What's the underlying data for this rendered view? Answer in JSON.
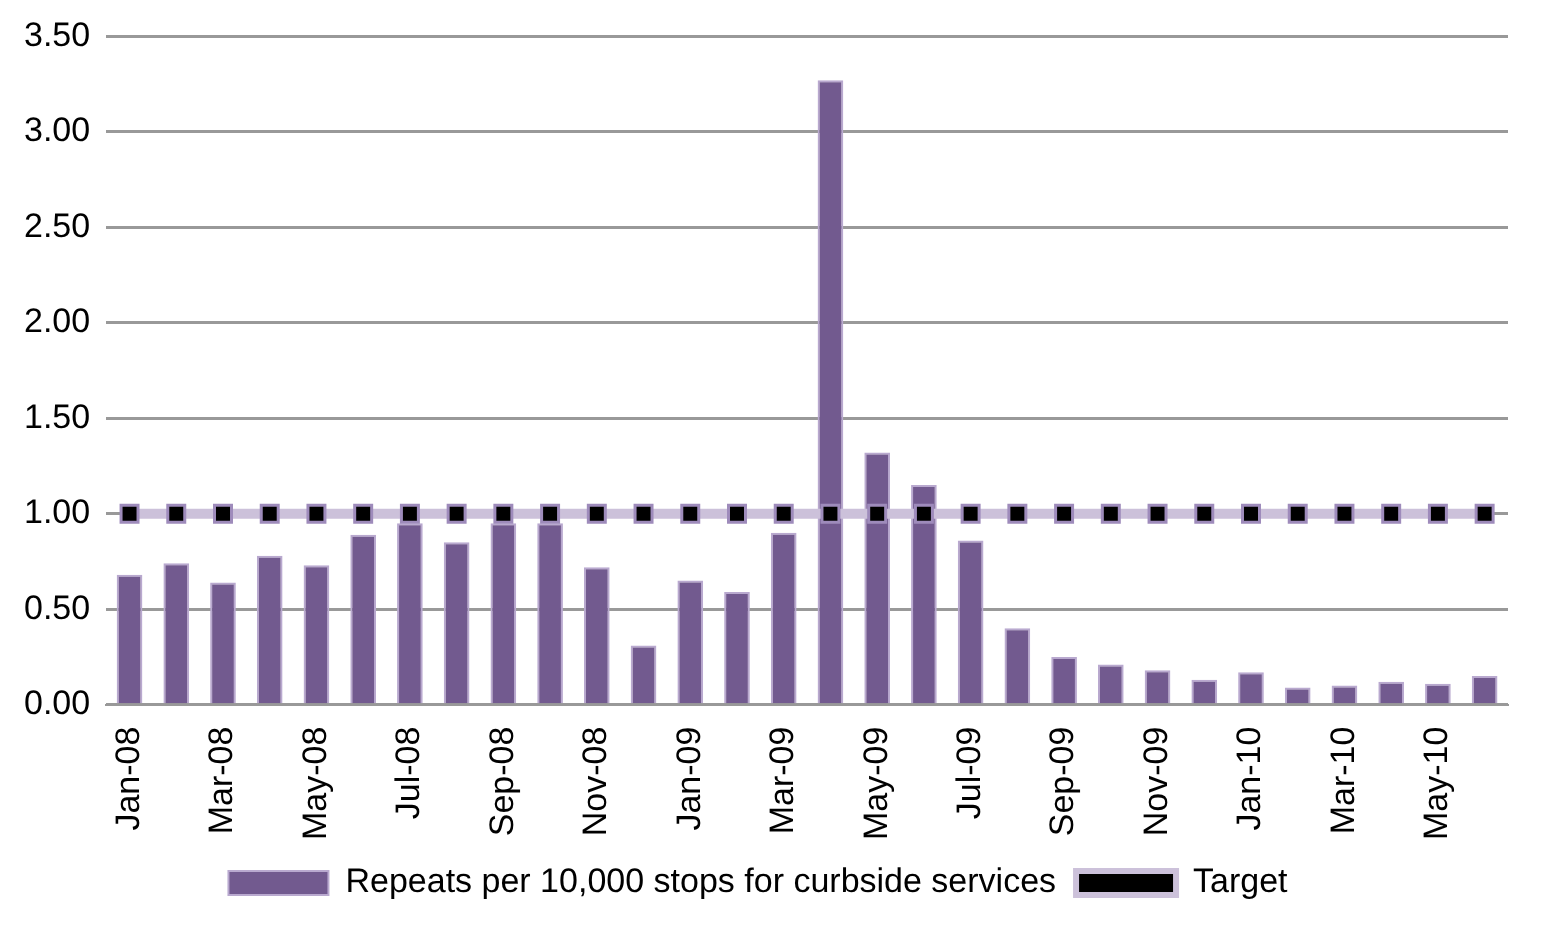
{
  "chart_data": {
    "type": "bar",
    "categories": [
      "Jan-08",
      null,
      "Mar-08",
      null,
      "May-08",
      null,
      "Jul-08",
      null,
      "Sep-08",
      null,
      "Nov-08",
      null,
      "Jan-09",
      null,
      "Mar-09",
      null,
      "May-09",
      null,
      "Jul-09",
      null,
      "Sep-09",
      null,
      "Nov-09",
      null,
      "Jan-10",
      null,
      "Mar-10",
      null,
      "May-10",
      null
    ],
    "series": [
      {
        "name": "Repeats per 10,000 stops for curbside services",
        "color": "#725a8f",
        "values": [
          0.68,
          0.74,
          0.64,
          0.78,
          0.73,
          0.89,
          0.95,
          0.85,
          0.95,
          0.95,
          0.72,
          0.31,
          0.65,
          0.59,
          0.9,
          3.27,
          1.32,
          1.15,
          0.86,
          0.4,
          0.25,
          0.21,
          0.18,
          0.13,
          0.17,
          0.09,
          0.1,
          0.12,
          0.11,
          0.15
        ]
      },
      {
        "name": "Target",
        "type": "line",
        "color": "#ccc1da",
        "marker": "square",
        "values": [
          1,
          1,
          1,
          1,
          1,
          1,
          1,
          1,
          1,
          1,
          1,
          1,
          1,
          1,
          1,
          1,
          1,
          1,
          1,
          1,
          1,
          1,
          1,
          1,
          1,
          1,
          1,
          1,
          1,
          1
        ]
      }
    ],
    "ylim": [
      0,
      3.5
    ],
    "yticks": [
      {
        "value": 0,
        "label": "0.00"
      },
      {
        "value": 0.5,
        "label": "0.50"
      },
      {
        "value": 1,
        "label": "1.00"
      },
      {
        "value": 1.5,
        "label": "1.50"
      },
      {
        "value": 2,
        "label": "2.00"
      },
      {
        "value": 2.5,
        "label": "2.50"
      },
      {
        "value": 3,
        "label": "3.00"
      },
      {
        "value": 3.5,
        "label": "3.50"
      }
    ],
    "grid": "y",
    "legend": "bottom"
  }
}
